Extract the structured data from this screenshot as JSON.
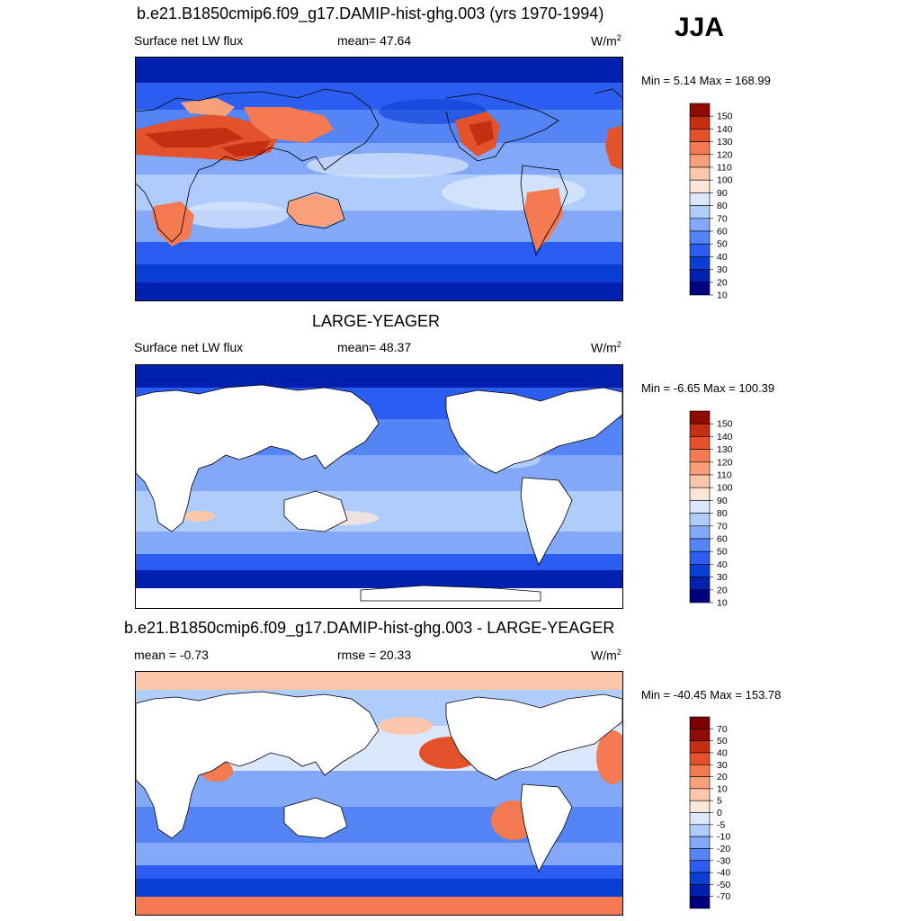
{
  "season": "JJA",
  "panels": [
    {
      "title": "b.e21.B1850cmip6.f09_g17.DAMIP-hist-ghg.003 (yrs 1970-1994)",
      "left_label": "Surface net LW flux",
      "mid_label": "mean=  47.64",
      "units": "W/m",
      "units_sup": "2",
      "minmax": "Min =   5.14 Max = 168.99",
      "colorbar_labels": [
        "150",
        "140",
        "130",
        "120",
        "110",
        "100",
        "90",
        "80",
        "70",
        "60",
        "50",
        "40",
        "30",
        "20",
        "10"
      ]
    },
    {
      "title": "LARGE-YEAGER",
      "left_label": "Surface net LW flux",
      "mid_label": "mean=  48.37",
      "units": "W/m",
      "units_sup": "2",
      "minmax": "Min =  -6.65 Max = 100.39",
      "colorbar_labels": [
        "150",
        "140",
        "130",
        "120",
        "110",
        "100",
        "90",
        "80",
        "70",
        "60",
        "50",
        "40",
        "30",
        "20",
        "10"
      ]
    },
    {
      "title": "b.e21.B1850cmip6.f09_g17.DAMIP-hist-ghg.003 - LARGE-YEAGER",
      "left_label": "mean =  -0.73",
      "mid_label": "rmse =  20.33",
      "units": "W/m",
      "units_sup": "2",
      "minmax": "Min = -40.45 Max = 153.78",
      "colorbar_labels": [
        "70",
        "50",
        "40",
        "30",
        "20",
        "10",
        "5",
        "0",
        "-5",
        "-10",
        "-20",
        "-30",
        "-40",
        "-50",
        "-70"
      ]
    }
  ],
  "colors": {
    "flux_scale": [
      "#00007f",
      "#0020b0",
      "#0a3fd6",
      "#2b5ef0",
      "#5585f5",
      "#82a8f7",
      "#b0ccfa",
      "#dbe8fc",
      "#fde7d8",
      "#fcc7ab",
      "#f9a07b",
      "#f37a51",
      "#e3522b",
      "#c42e12",
      "#8e0a02"
    ],
    "diff_scale": [
      "#00007f",
      "#0020b0",
      "#0a3fd6",
      "#2b5ef0",
      "#5585f5",
      "#82a8f7",
      "#b0ccfa",
      "#dbe8fc",
      "#fde7d8",
      "#fcc7ab",
      "#f9a07b",
      "#f37a51",
      "#e3522b",
      "#c42e12",
      "#8e0a02",
      "#7a0000"
    ],
    "land_mask": "#ffffff",
    "coastline": "#000000"
  }
}
